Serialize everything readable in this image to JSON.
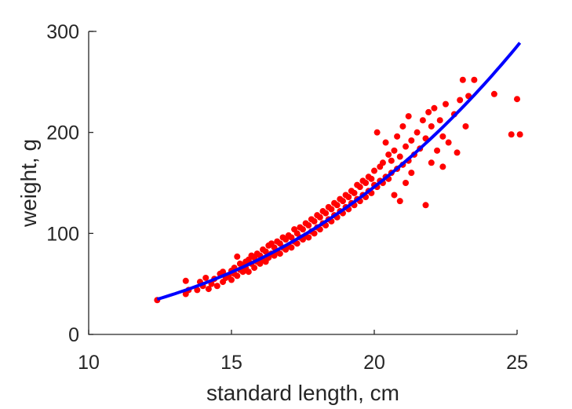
{
  "chart_data": {
    "type": "scatter",
    "xlabel": "standard length, cm",
    "ylabel": "weight, g",
    "xlim": [
      10,
      25
    ],
    "ylim": [
      0,
      300
    ],
    "xticks": [
      10,
      15,
      20,
      25
    ],
    "yticks": [
      0,
      100,
      200,
      300
    ],
    "grid": false,
    "legend": "none",
    "series": [
      {
        "kind": "scatter",
        "color": "#ff0000",
        "points": [
          [
            12.4,
            34
          ],
          [
            13.4,
            53
          ],
          [
            13.4,
            40
          ],
          [
            13.5,
            44
          ],
          [
            13.8,
            44
          ],
          [
            13.9,
            52
          ],
          [
            14.0,
            48
          ],
          [
            14.1,
            56
          ],
          [
            14.2,
            45
          ],
          [
            14.3,
            50
          ],
          [
            14.4,
            55
          ],
          [
            14.5,
            48
          ],
          [
            14.6,
            60
          ],
          [
            14.7,
            52
          ],
          [
            14.7,
            62
          ],
          [
            14.8,
            56
          ],
          [
            14.9,
            58
          ],
          [
            15.0,
            54
          ],
          [
            15.0,
            63
          ],
          [
            15.1,
            60
          ],
          [
            15.1,
            66
          ],
          [
            15.2,
            58
          ],
          [
            15.2,
            77
          ],
          [
            15.3,
            64
          ],
          [
            15.3,
            70
          ],
          [
            15.4,
            62
          ],
          [
            15.4,
            68
          ],
          [
            15.5,
            66
          ],
          [
            15.5,
            72
          ],
          [
            15.6,
            62
          ],
          [
            15.6,
            74
          ],
          [
            15.7,
            70
          ],
          [
            15.7,
            78
          ],
          [
            15.8,
            66
          ],
          [
            15.8,
            76
          ],
          [
            15.9,
            72
          ],
          [
            15.9,
            80
          ],
          [
            16.0,
            70
          ],
          [
            16.0,
            78
          ],
          [
            16.1,
            74
          ],
          [
            16.1,
            84
          ],
          [
            16.2,
            72
          ],
          [
            16.2,
            82
          ],
          [
            16.3,
            76
          ],
          [
            16.3,
            88
          ],
          [
            16.4,
            80
          ],
          [
            16.4,
            90
          ],
          [
            16.5,
            78
          ],
          [
            16.5,
            86
          ],
          [
            16.6,
            82
          ],
          [
            16.6,
            92
          ],
          [
            16.7,
            80
          ],
          [
            16.7,
            90
          ],
          [
            16.8,
            86
          ],
          [
            16.8,
            96
          ],
          [
            16.9,
            84
          ],
          [
            16.9,
            94
          ],
          [
            17.0,
            88
          ],
          [
            17.0,
            98
          ],
          [
            17.1,
            86
          ],
          [
            17.1,
            96
          ],
          [
            17.2,
            92
          ],
          [
            17.2,
            104
          ],
          [
            17.3,
            90
          ],
          [
            17.3,
            100
          ],
          [
            17.4,
            96
          ],
          [
            17.4,
            106
          ],
          [
            17.5,
            94
          ],
          [
            17.5,
            104
          ],
          [
            17.6,
            98
          ],
          [
            17.6,
            110
          ],
          [
            17.7,
            96
          ],
          [
            17.7,
            108
          ],
          [
            17.8,
            102
          ],
          [
            17.8,
            114
          ],
          [
            17.9,
            100
          ],
          [
            17.9,
            112
          ],
          [
            18.0,
            106
          ],
          [
            18.0,
            118
          ],
          [
            18.1,
            104
          ],
          [
            18.1,
            116
          ],
          [
            18.2,
            110
          ],
          [
            18.2,
            122
          ],
          [
            18.3,
            108
          ],
          [
            18.3,
            120
          ],
          [
            18.4,
            114
          ],
          [
            18.4,
            126
          ],
          [
            18.5,
            112
          ],
          [
            18.5,
            124
          ],
          [
            18.6,
            118
          ],
          [
            18.6,
            130
          ],
          [
            18.7,
            116
          ],
          [
            18.7,
            128
          ],
          [
            18.8,
            122
          ],
          [
            18.8,
            134
          ],
          [
            18.9,
            120
          ],
          [
            18.9,
            132
          ],
          [
            19.0,
            126
          ],
          [
            19.0,
            138
          ],
          [
            19.1,
            124
          ],
          [
            19.1,
            136
          ],
          [
            19.2,
            130
          ],
          [
            19.2,
            142
          ],
          [
            19.3,
            128
          ],
          [
            19.3,
            140
          ],
          [
            19.4,
            134
          ],
          [
            19.4,
            148
          ],
          [
            19.5,
            132
          ],
          [
            19.5,
            146
          ],
          [
            19.6,
            138
          ],
          [
            19.6,
            152
          ],
          [
            19.7,
            136
          ],
          [
            19.7,
            150
          ],
          [
            19.8,
            142
          ],
          [
            19.8,
            156
          ],
          [
            19.9,
            140
          ],
          [
            19.9,
            154
          ],
          [
            20.0,
            148
          ],
          [
            20.0,
            162
          ],
          [
            20.1,
            146
          ],
          [
            20.1,
            200
          ],
          [
            20.2,
            152
          ],
          [
            20.2,
            166
          ],
          [
            20.3,
            150
          ],
          [
            20.3,
            170
          ],
          [
            20.4,
            156
          ],
          [
            20.4,
            190
          ],
          [
            20.5,
            154
          ],
          [
            20.5,
            178
          ],
          [
            20.6,
            160
          ],
          [
            20.6,
            172
          ],
          [
            20.7,
            138
          ],
          [
            20.7,
            182
          ],
          [
            20.8,
            164
          ],
          [
            20.8,
            196
          ],
          [
            20.9,
            132
          ],
          [
            20.9,
            176
          ],
          [
            21.0,
            168
          ],
          [
            21.0,
            206
          ],
          [
            21.1,
            150
          ],
          [
            21.1,
            186
          ],
          [
            21.2,
            172
          ],
          [
            21.2,
            216
          ],
          [
            21.3,
            160
          ],
          [
            21.3,
            192
          ],
          [
            21.4,
            178
          ],
          [
            21.5,
            200
          ],
          [
            21.6,
            184
          ],
          [
            21.7,
            212
          ],
          [
            21.8,
            128
          ],
          [
            21.8,
            194
          ],
          [
            21.9,
            220
          ],
          [
            22.0,
            170
          ],
          [
            22.0,
            206
          ],
          [
            22.1,
            224
          ],
          [
            22.2,
            182
          ],
          [
            22.3,
            212
          ],
          [
            22.4,
            166
          ],
          [
            22.4,
            196
          ],
          [
            22.5,
            228
          ],
          [
            22.6,
            190
          ],
          [
            22.8,
            218
          ],
          [
            22.9,
            180
          ],
          [
            23.0,
            232
          ],
          [
            23.1,
            252
          ],
          [
            23.2,
            206
          ],
          [
            23.3,
            236
          ],
          [
            23.5,
            252
          ],
          [
            24.2,
            238
          ],
          [
            24.8,
            198
          ],
          [
            25.0,
            233
          ],
          [
            25.1,
            198
          ]
        ]
      },
      {
        "kind": "line",
        "color": "#0000ff",
        "curve": {
          "form": "power",
          "a": 0.01826,
          "b": 3.0,
          "x_from": 12.4,
          "x_to": 25.1
        }
      }
    ]
  }
}
